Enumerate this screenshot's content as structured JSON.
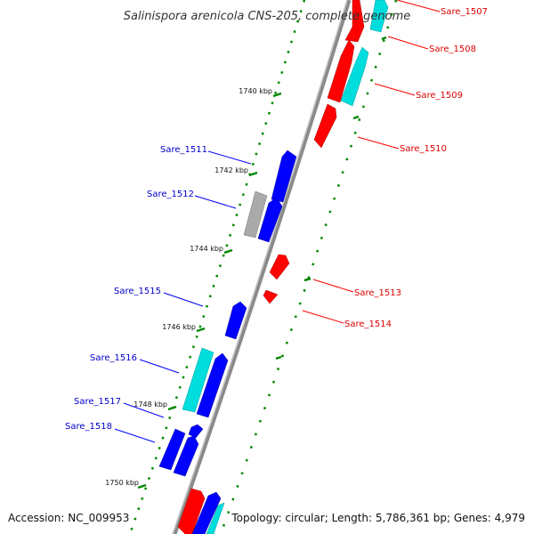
{
  "title": "Salinispora arenicola CNS-205, complete genome",
  "footer": {
    "accession": "Accession: NC_009953",
    "info": "Topology: circular; Length: 5,786,361 bp; Genes: 4,979"
  },
  "colors": {
    "forward": "#ff0000",
    "reverse": "#0000ff",
    "forward_rna": "#00dddd",
    "reverse_rna": "#00dddd",
    "other": "#aaaaaa",
    "backbone": "#888888",
    "tick": "#008800"
  },
  "ticks": [
    {
      "label": "1740 kbp"
    },
    {
      "label": "1742 kbp"
    },
    {
      "label": "1744 kbp"
    },
    {
      "label": "1746 kbp"
    },
    {
      "label": "1748 kbp"
    },
    {
      "label": "1750 kbp"
    }
  ],
  "forward_labels": [
    {
      "label": "Sare_1507"
    },
    {
      "label": "Sare_1508"
    },
    {
      "label": "Sare_1509"
    },
    {
      "label": "Sare_1510"
    },
    {
      "label": "Sare_1513"
    },
    {
      "label": "Sare_1514"
    }
  ],
  "reverse_labels": [
    {
      "label": "Sare_1511"
    },
    {
      "label": "Sare_1512"
    },
    {
      "label": "Sare_1515"
    },
    {
      "label": "Sare_1516"
    },
    {
      "label": "Sare_1517"
    },
    {
      "label": "Sare_1518"
    }
  ]
}
